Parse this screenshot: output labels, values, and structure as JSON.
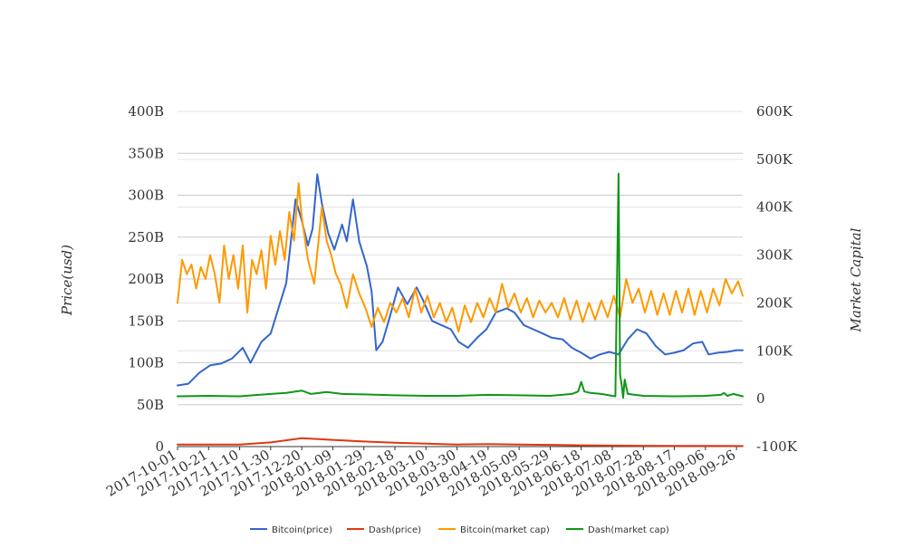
{
  "chart_data": {
    "type": "line",
    "x_tick_labels": [
      "2017-10-01",
      "2017-10-21",
      "2017-11-10",
      "2017-11-30",
      "2017-12-20",
      "2018-01-09",
      "2018-01-29",
      "2018-02-18",
      "2018-03-10",
      "2018-03-30",
      "2018-04-19",
      "2018-05-09",
      "2018-05-29",
      "2018-06-18",
      "2018-07-08",
      "2018-07-28",
      "2018-08-17",
      "2018-09-06",
      "2018-09-26"
    ],
    "x_range": [
      "2017-10-01",
      "2018-09-30"
    ],
    "ylabel_left": "Price(usd)",
    "ylabel_right": "Market Capital",
    "y_left": {
      "range": [
        0,
        400000000000
      ],
      "ticks": [
        0,
        50000000000,
        100000000000,
        150000000000,
        200000000000,
        250000000000,
        300000000000,
        350000000000,
        400000000000
      ],
      "tick_labels": [
        "0",
        "50B",
        "100B",
        "150B",
        "200B",
        "250B",
        "300B",
        "350B",
        "400B"
      ]
    },
    "y_right": {
      "range": [
        -100000,
        600000
      ],
      "ticks": [
        -100000,
        0,
        100000,
        200000,
        300000,
        400000,
        500000,
        600000
      ],
      "tick_labels": [
        "-100K",
        "0",
        "100K",
        "200K",
        "300K",
        "400K",
        "500K",
        "600K"
      ]
    },
    "grid": true,
    "legend_position": "bottom",
    "series": [
      {
        "name": "Bitcoin(price)",
        "axis": "left",
        "color": "#3366cc",
        "points": [
          [
            "2017-10-01",
            73000000000
          ],
          [
            "2017-10-08",
            75000000000
          ],
          [
            "2017-10-15",
            88000000000
          ],
          [
            "2017-10-22",
            97000000000
          ],
          [
            "2017-10-29",
            99000000000
          ],
          [
            "2017-11-05",
            105000000000
          ],
          [
            "2017-11-12",
            118000000000
          ],
          [
            "2017-11-17",
            100000000000
          ],
          [
            "2017-11-24",
            125000000000
          ],
          [
            "2017-11-30",
            135000000000
          ],
          [
            "2017-12-05",
            165000000000
          ],
          [
            "2017-12-10",
            195000000000
          ],
          [
            "2017-12-16",
            295000000000
          ],
          [
            "2017-12-20",
            270000000000
          ],
          [
            "2017-12-24",
            240000000000
          ],
          [
            "2017-12-27",
            260000000000
          ],
          [
            "2017-12-30",
            325000000000
          ],
          [
            "2018-01-02",
            290000000000
          ],
          [
            "2018-01-06",
            255000000000
          ],
          [
            "2018-01-10",
            235000000000
          ],
          [
            "2018-01-15",
            265000000000
          ],
          [
            "2018-01-18",
            245000000000
          ],
          [
            "2018-01-22",
            295000000000
          ],
          [
            "2018-01-26",
            245000000000
          ],
          [
            "2018-01-31",
            215000000000
          ],
          [
            "2018-02-03",
            185000000000
          ],
          [
            "2018-02-06",
            115000000000
          ],
          [
            "2018-02-10",
            125000000000
          ],
          [
            "2018-02-14",
            150000000000
          ],
          [
            "2018-02-20",
            190000000000
          ],
          [
            "2018-02-26",
            170000000000
          ],
          [
            "2018-03-04",
            190000000000
          ],
          [
            "2018-03-08",
            175000000000
          ],
          [
            "2018-03-14",
            150000000000
          ],
          [
            "2018-03-20",
            145000000000
          ],
          [
            "2018-03-26",
            140000000000
          ],
          [
            "2018-03-31",
            125000000000
          ],
          [
            "2018-04-06",
            118000000000
          ],
          [
            "2018-04-12",
            130000000000
          ],
          [
            "2018-04-18",
            140000000000
          ],
          [
            "2018-04-24",
            160000000000
          ],
          [
            "2018-05-01",
            165000000000
          ],
          [
            "2018-05-06",
            160000000000
          ],
          [
            "2018-05-12",
            145000000000
          ],
          [
            "2018-05-18",
            140000000000
          ],
          [
            "2018-05-24",
            135000000000
          ],
          [
            "2018-05-30",
            130000000000
          ],
          [
            "2018-06-06",
            128000000000
          ],
          [
            "2018-06-12",
            118000000000
          ],
          [
            "2018-06-18",
            112000000000
          ],
          [
            "2018-06-24",
            105000000000
          ],
          [
            "2018-06-30",
            110000000000
          ],
          [
            "2018-07-06",
            113000000000
          ],
          [
            "2018-07-12",
            110000000000
          ],
          [
            "2018-07-18",
            128000000000
          ],
          [
            "2018-07-24",
            140000000000
          ],
          [
            "2018-07-30",
            135000000000
          ],
          [
            "2018-08-05",
            120000000000
          ],
          [
            "2018-08-11",
            110000000000
          ],
          [
            "2018-08-17",
            112000000000
          ],
          [
            "2018-08-23",
            115000000000
          ],
          [
            "2018-08-29",
            123000000000
          ],
          [
            "2018-09-04",
            125000000000
          ],
          [
            "2018-09-08",
            110000000000
          ],
          [
            "2018-09-14",
            112000000000
          ],
          [
            "2018-09-20",
            113000000000
          ],
          [
            "2018-09-26",
            115000000000
          ],
          [
            "2018-09-30",
            115000000000
          ]
        ]
      },
      {
        "name": "Dash(price)",
        "axis": "left",
        "color": "#dc3912",
        "points": [
          [
            "2017-10-01",
            2500000000
          ],
          [
            "2017-11-10",
            2500000000
          ],
          [
            "2017-11-30",
            5000000000
          ],
          [
            "2017-12-20",
            10000000000
          ],
          [
            "2018-01-09",
            8000000000
          ],
          [
            "2018-01-29",
            6000000000
          ],
          [
            "2018-02-18",
            4500000000
          ],
          [
            "2018-03-10",
            3500000000
          ],
          [
            "2018-03-30",
            2500000000
          ],
          [
            "2018-04-19",
            3000000000
          ],
          [
            "2018-05-09",
            2500000000
          ],
          [
            "2018-05-29",
            2000000000
          ],
          [
            "2018-06-18",
            1500000000
          ],
          [
            "2018-07-08",
            1200000000
          ],
          [
            "2018-07-28",
            1000000000
          ],
          [
            "2018-08-17",
            800000000
          ],
          [
            "2018-09-06",
            800000000
          ],
          [
            "2018-09-30",
            700000000
          ]
        ]
      },
      {
        "name": "Bitcoin(market cap)",
        "axis": "right",
        "color": "#ff9900",
        "points": [
          [
            "2017-10-01",
            200000
          ],
          [
            "2017-10-04",
            290000
          ],
          [
            "2017-10-07",
            260000
          ],
          [
            "2017-10-10",
            280000
          ],
          [
            "2017-10-13",
            230000
          ],
          [
            "2017-10-16",
            275000
          ],
          [
            "2017-10-19",
            250000
          ],
          [
            "2017-10-22",
            300000
          ],
          [
            "2017-10-25",
            260000
          ],
          [
            "2017-10-28",
            200000
          ],
          [
            "2017-10-31",
            320000
          ],
          [
            "2017-11-03",
            250000
          ],
          [
            "2017-11-06",
            300000
          ],
          [
            "2017-11-09",
            230000
          ],
          [
            "2017-11-12",
            320000
          ],
          [
            "2017-11-15",
            180000
          ],
          [
            "2017-11-18",
            290000
          ],
          [
            "2017-11-21",
            260000
          ],
          [
            "2017-11-24",
            310000
          ],
          [
            "2017-11-27",
            230000
          ],
          [
            "2017-11-30",
            340000
          ],
          [
            "2017-12-03",
            280000
          ],
          [
            "2017-12-06",
            350000
          ],
          [
            "2017-12-09",
            290000
          ],
          [
            "2017-12-12",
            390000
          ],
          [
            "2017-12-15",
            330000
          ],
          [
            "2017-12-18",
            450000
          ],
          [
            "2017-12-20",
            380000
          ],
          [
            "2017-12-24",
            290000
          ],
          [
            "2017-12-28",
            240000
          ],
          [
            "2018-01-02",
            400000
          ],
          [
            "2018-01-05",
            330000
          ],
          [
            "2018-01-08",
            300000
          ],
          [
            "2018-01-11",
            260000
          ],
          [
            "2018-01-14",
            240000
          ],
          [
            "2018-01-18",
            190000
          ],
          [
            "2018-01-22",
            260000
          ],
          [
            "2018-01-26",
            220000
          ],
          [
            "2018-01-30",
            190000
          ],
          [
            "2018-02-03",
            150000
          ],
          [
            "2018-02-07",
            190000
          ],
          [
            "2018-02-11",
            160000
          ],
          [
            "2018-02-15",
            200000
          ],
          [
            "2018-02-19",
            180000
          ],
          [
            "2018-02-23",
            210000
          ],
          [
            "2018-02-27",
            170000
          ],
          [
            "2018-03-03",
            230000
          ],
          [
            "2018-03-07",
            180000
          ],
          [
            "2018-03-11",
            215000
          ],
          [
            "2018-03-15",
            170000
          ],
          [
            "2018-03-19",
            200000
          ],
          [
            "2018-03-23",
            160000
          ],
          [
            "2018-03-27",
            190000
          ],
          [
            "2018-03-31",
            140000
          ],
          [
            "2018-04-04",
            195000
          ],
          [
            "2018-04-08",
            160000
          ],
          [
            "2018-04-12",
            200000
          ],
          [
            "2018-04-16",
            170000
          ],
          [
            "2018-04-20",
            210000
          ],
          [
            "2018-04-24",
            180000
          ],
          [
            "2018-04-28",
            240000
          ],
          [
            "2018-05-02",
            190000
          ],
          [
            "2018-05-06",
            220000
          ],
          [
            "2018-05-10",
            180000
          ],
          [
            "2018-05-14",
            210000
          ],
          [
            "2018-05-18",
            170000
          ],
          [
            "2018-05-22",
            205000
          ],
          [
            "2018-05-26",
            180000
          ],
          [
            "2018-05-30",
            200000
          ],
          [
            "2018-06-03",
            170000
          ],
          [
            "2018-06-07",
            210000
          ],
          [
            "2018-06-11",
            165000
          ],
          [
            "2018-06-15",
            205000
          ],
          [
            "2018-06-19",
            160000
          ],
          [
            "2018-06-23",
            200000
          ],
          [
            "2018-06-27",
            165000
          ],
          [
            "2018-07-01",
            205000
          ],
          [
            "2018-07-05",
            170000
          ],
          [
            "2018-07-09",
            215000
          ],
          [
            "2018-07-13",
            170000
          ],
          [
            "2018-07-17",
            250000
          ],
          [
            "2018-07-21",
            200000
          ],
          [
            "2018-07-25",
            230000
          ],
          [
            "2018-07-29",
            180000
          ],
          [
            "2018-08-02",
            225000
          ],
          [
            "2018-08-06",
            175000
          ],
          [
            "2018-08-10",
            220000
          ],
          [
            "2018-08-14",
            175000
          ],
          [
            "2018-08-18",
            225000
          ],
          [
            "2018-08-22",
            180000
          ],
          [
            "2018-08-26",
            230000
          ],
          [
            "2018-08-30",
            175000
          ],
          [
            "2018-09-03",
            225000
          ],
          [
            "2018-09-07",
            180000
          ],
          [
            "2018-09-11",
            230000
          ],
          [
            "2018-09-15",
            195000
          ],
          [
            "2018-09-19",
            250000
          ],
          [
            "2018-09-23",
            220000
          ],
          [
            "2018-09-27",
            245000
          ],
          [
            "2018-09-30",
            215000
          ]
        ]
      },
      {
        "name": "Dash(market cap)",
        "axis": "right",
        "color": "#109618",
        "points": [
          [
            "2017-10-01",
            5000
          ],
          [
            "2017-10-21",
            6000
          ],
          [
            "2017-11-10",
            5000
          ],
          [
            "2017-11-30",
            10000
          ],
          [
            "2017-12-10",
            12000
          ],
          [
            "2017-12-20",
            17000
          ],
          [
            "2017-12-26",
            10000
          ],
          [
            "2018-01-05",
            14000
          ],
          [
            "2018-01-15",
            10000
          ],
          [
            "2018-01-29",
            9000
          ],
          [
            "2018-02-18",
            7000
          ],
          [
            "2018-03-10",
            6000
          ],
          [
            "2018-03-30",
            6000
          ],
          [
            "2018-04-19",
            8000
          ],
          [
            "2018-05-09",
            7000
          ],
          [
            "2018-05-29",
            6000
          ],
          [
            "2018-06-12",
            10000
          ],
          [
            "2018-06-16",
            15000
          ],
          [
            "2018-06-18",
            35000
          ],
          [
            "2018-06-20",
            15000
          ],
          [
            "2018-06-24",
            12000
          ],
          [
            "2018-07-01",
            10000
          ],
          [
            "2018-07-08",
            6000
          ],
          [
            "2018-07-10",
            5000
          ],
          [
            "2018-07-12",
            470000
          ],
          [
            "2018-07-13",
            50000
          ],
          [
            "2018-07-14",
            30000
          ],
          [
            "2018-07-15",
            2000
          ],
          [
            "2018-07-16",
            40000
          ],
          [
            "2018-07-18",
            10000
          ],
          [
            "2018-07-28",
            6000
          ],
          [
            "2018-08-17",
            5000
          ],
          [
            "2018-09-06",
            6000
          ],
          [
            "2018-09-16",
            8000
          ],
          [
            "2018-09-18",
            12000
          ],
          [
            "2018-09-20",
            6000
          ],
          [
            "2018-09-24",
            10000
          ],
          [
            "2018-09-30",
            5000
          ]
        ]
      }
    ]
  }
}
